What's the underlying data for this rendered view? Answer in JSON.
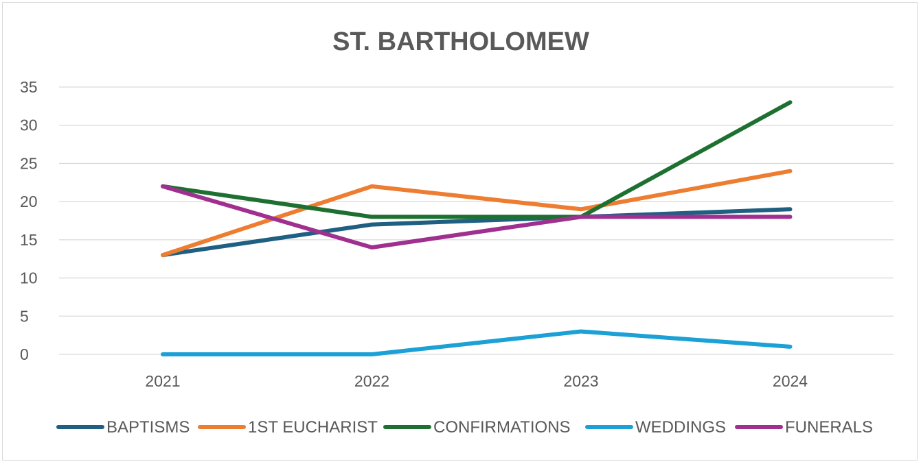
{
  "chart_data": {
    "type": "line",
    "title": "ST. BARTHOLOMEW",
    "xlabel": "",
    "ylabel": "",
    "categories": [
      "2021",
      "2022",
      "2023",
      "2024"
    ],
    "ylim": [
      0,
      35
    ],
    "yticks": [
      "0",
      "5",
      "10",
      "15",
      "20",
      "25",
      "30",
      "35"
    ],
    "grid": true,
    "legend": "bottom",
    "series": [
      {
        "name": "BAPTISMS",
        "color": "#1f5f82",
        "values": [
          13,
          17,
          18,
          19
        ]
      },
      {
        "name": "1ST EUCHARIST",
        "color": "#ed7d31",
        "values": [
          13,
          22,
          19,
          24
        ]
      },
      {
        "name": "CONFIRMATIONS",
        "color": "#1d7030",
        "values": [
          22,
          18,
          18,
          33
        ]
      },
      {
        "name": "WEDDINGS",
        "color": "#1ba1d6",
        "values": [
          0,
          0,
          3,
          1
        ]
      },
      {
        "name": "FUNERALS",
        "color": "#a0308f",
        "values": [
          22,
          14,
          18,
          18
        ]
      }
    ]
  }
}
